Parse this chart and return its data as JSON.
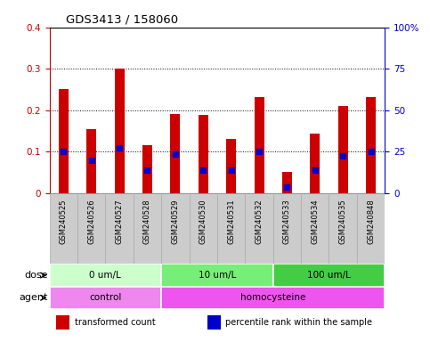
{
  "title": "GDS3413 / 158060",
  "samples": [
    "GSM240525",
    "GSM240526",
    "GSM240527",
    "GSM240528",
    "GSM240529",
    "GSM240530",
    "GSM240531",
    "GSM240532",
    "GSM240533",
    "GSM240534",
    "GSM240535",
    "GSM240848"
  ],
  "transformed_count": [
    0.25,
    0.155,
    0.3,
    0.115,
    0.19,
    0.188,
    0.13,
    0.232,
    0.05,
    0.143,
    0.21,
    0.232
  ],
  "percentile_rank_scaled": [
    0.1,
    0.08,
    0.11,
    0.055,
    0.095,
    0.055,
    0.055,
    0.1,
    0.015,
    0.055,
    0.09,
    0.1
  ],
  "bar_color": "#cc0000",
  "dot_color": "#0000cc",
  "ylim_left": [
    0,
    0.4
  ],
  "ylim_right": [
    0,
    100
  ],
  "yticks_left": [
    0,
    0.1,
    0.2,
    0.3,
    0.4
  ],
  "yticks_right": [
    0,
    25,
    50,
    75,
    100
  ],
  "ytick_labels_left": [
    "0",
    "0.1",
    "0.2",
    "0.3",
    "0.4"
  ],
  "ytick_labels_right": [
    "0",
    "25",
    "50",
    "75",
    "100%"
  ],
  "dose_groups": [
    {
      "label": "0 um/L",
      "start": 0,
      "end": 4,
      "color": "#ccffcc"
    },
    {
      "label": "10 um/L",
      "start": 4,
      "end": 8,
      "color": "#77ee77"
    },
    {
      "label": "100 um/L",
      "start": 8,
      "end": 12,
      "color": "#44cc44"
    }
  ],
  "agent_groups": [
    {
      "label": "control",
      "start": 0,
      "end": 4,
      "color": "#ee88ee"
    },
    {
      "label": "homocysteine",
      "start": 4,
      "end": 12,
      "color": "#ee55ee"
    }
  ],
  "tick_label_color_left": "#cc0000",
  "tick_label_color_right": "#0000cc",
  "bar_width": 0.35,
  "dot_size": 18,
  "plot_bg_color": "#ffffff",
  "xtick_bg_color": "#cccccc",
  "xtick_border_color": "#aaaaaa"
}
